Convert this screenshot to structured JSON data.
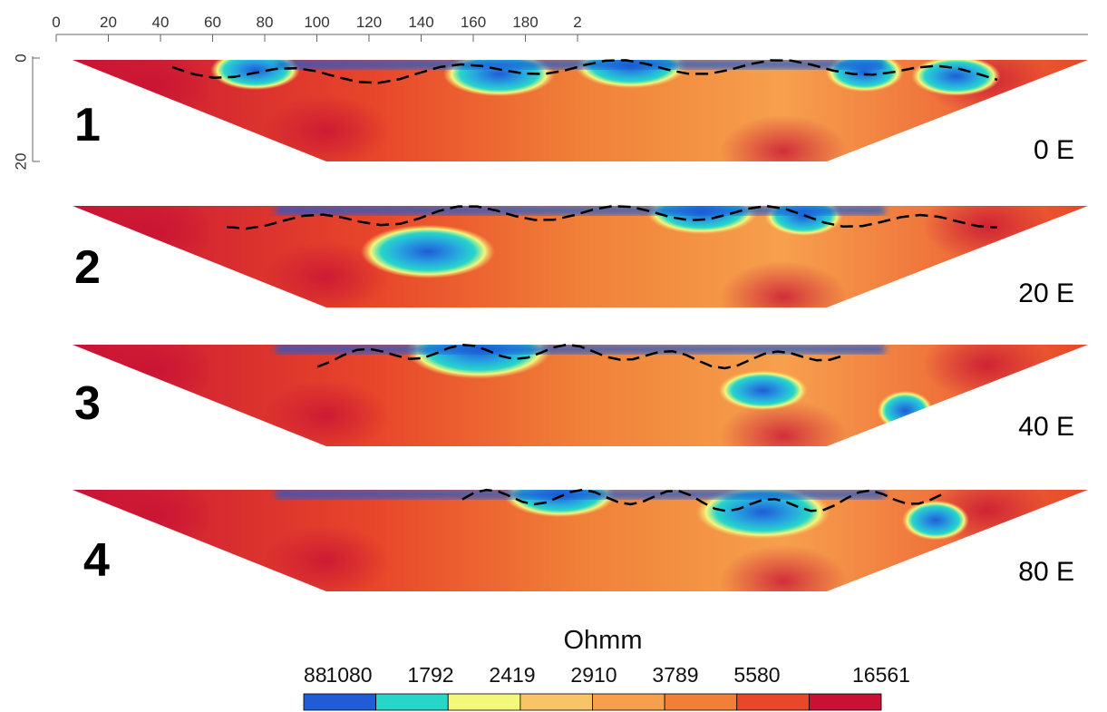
{
  "chart_data": {
    "type": "heatmap",
    "title": "",
    "x_ticks": [
      "0",
      "20",
      "40",
      "60",
      "80",
      "100",
      "120",
      "140",
      "160",
      "180",
      "2"
    ],
    "y_ticks": [
      "0",
      "20"
    ],
    "colorbar": {
      "title": "Ohmm",
      "values": [
        "88",
        "1080",
        "1792",
        "2419",
        "2910",
        "3789",
        "5580",
        "16561"
      ],
      "colors": [
        "#1f5cd6",
        "#27d6c8",
        "#f3f77a",
        "#f9c468",
        "#f6a04d",
        "#f08038",
        "#e8472a",
        "#c81235"
      ]
    },
    "profiles": [
      {
        "label": "1",
        "direction": "0 E",
        "low_zone": [
          [
            0.18,
            0.1,
            0.08
          ],
          [
            0.42,
            0.14,
            0.1
          ],
          [
            0.55,
            0.06,
            0.1
          ],
          [
            0.78,
            0.12,
            0.07
          ],
          [
            0.87,
            0.16,
            0.08
          ]
        ]
      },
      {
        "label": "2",
        "direction": "20 E",
        "low_zone": [
          [
            0.35,
            0.45,
            0.12
          ],
          [
            0.62,
            0.06,
            0.1
          ],
          [
            0.72,
            0.1,
            0.07
          ]
        ]
      },
      {
        "label": "3",
        "direction": "40 E",
        "low_zone": [
          [
            0.4,
            0.05,
            0.13
          ],
          [
            0.68,
            0.45,
            0.08
          ],
          [
            0.82,
            0.65,
            0.05
          ]
        ]
      },
      {
        "label": "4",
        "direction": "80 E",
        "low_zone": [
          [
            0.48,
            0.05,
            0.1
          ],
          [
            0.68,
            0.22,
            0.12
          ],
          [
            0.85,
            0.3,
            0.06
          ]
        ]
      }
    ]
  }
}
